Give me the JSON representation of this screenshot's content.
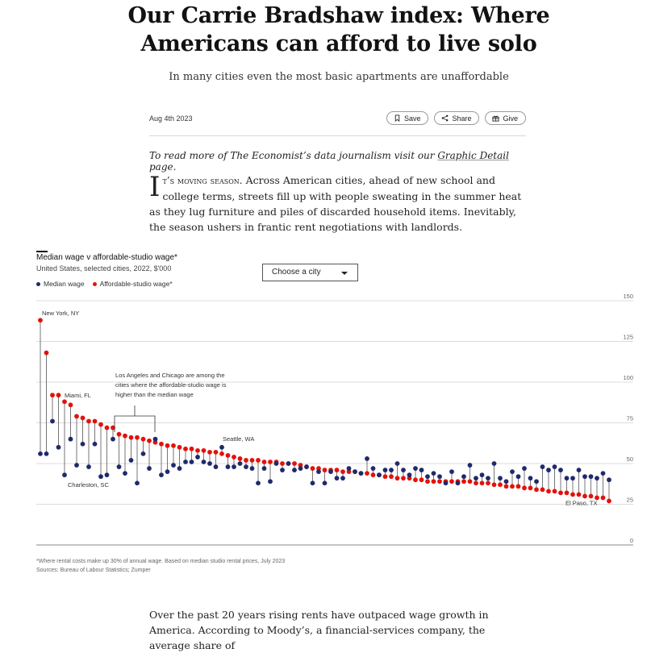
{
  "article": {
    "headline": "Our Carrie Bradshaw index: Where Americans can afford to live solo",
    "subhead": "In many cities even the most basic apartments are unaffordable",
    "date": "Aug 4th 2023",
    "buttons": {
      "save": "Save",
      "share": "Share",
      "give": "Give"
    },
    "readmore_prefix": "To read more of The Economist’s data journalism visit our ",
    "readmore_link": "Graphic Detail",
    "readmore_suffix": " page.",
    "para1_dropcap": "I",
    "para1_smallcaps": "t’s moving season.",
    "para1_rest": " Across American cities, ahead of new school and college terms, streets fill up with people sweating in the summer heat as they lug furniture and piles of discarded household items. Inevitably, the season ushers in frantic rent negotiations with landlords.",
    "para2": "Over the past 20 years rising rents have outpaced wage growth in America. According to Moody’s, a financial-services company, the average share of"
  },
  "chart": {
    "title": "Median wage v affordable-studio wage*",
    "subtitle": "United States, selected cities, 2022, $'000",
    "city_select": "Choose a city",
    "footnote_1": "*Where rental costs make up 30% of annual wage. Based on median studio rental prices, July 2023",
    "footnote_2": "Sources: Bureau of Labour Statistics; Zumper"
  },
  "chart_data": {
    "type": "scatter",
    "title": "Median wage v affordable-studio wage*",
    "subtitle": "United States, selected cities, 2022, $'000",
    "ylim": [
      0,
      150
    ],
    "yticks": [
      0,
      25,
      50,
      75,
      100,
      125,
      150
    ],
    "grid": true,
    "legend": "top-left",
    "series": [
      {
        "name": "Median wage",
        "color": "#1f2a6b",
        "values": [
          56,
          56,
          76,
          60,
          43,
          65,
          49,
          62,
          48,
          62,
          42,
          43,
          65,
          48,
          44,
          52,
          38,
          56,
          47,
          65,
          43,
          45,
          49,
          47,
          51,
          51,
          54,
          51,
          50,
          48,
          60,
          48,
          48,
          50,
          48,
          47,
          38,
          47,
          39,
          50,
          46,
          50,
          46,
          47,
          48,
          38,
          45,
          38,
          45,
          41,
          41,
          47,
          45,
          44,
          53,
          47,
          43,
          46,
          46,
          50,
          46,
          43,
          47,
          46,
          42,
          44,
          42,
          38,
          45,
          38,
          42,
          49,
          41,
          43,
          41,
          50,
          41,
          39,
          45,
          42,
          47,
          41,
          39,
          48,
          46,
          48,
          46,
          41,
          41,
          46,
          42,
          42,
          41,
          44,
          40
        ]
      },
      {
        "name": "Affordable-studio wage*",
        "color": "#e3120b",
        "values": [
          138,
          118,
          92,
          92,
          88,
          86,
          79,
          78,
          76,
          76,
          74,
          72,
          72,
          68,
          67,
          66,
          66,
          65,
          64,
          63,
          62,
          61,
          61,
          60,
          59,
          59,
          58,
          58,
          57,
          57,
          56,
          55,
          54,
          53,
          52,
          52,
          52,
          51,
          51,
          51,
          50,
          50,
          50,
          49,
          48,
          47,
          47,
          46,
          46,
          46,
          45,
          45,
          45,
          44,
          44,
          43,
          43,
          42,
          42,
          41,
          41,
          41,
          40,
          40,
          39,
          39,
          39,
          39,
          39,
          39,
          39,
          39,
          38,
          38,
          38,
          37,
          37,
          36,
          36,
          36,
          35,
          35,
          34,
          34,
          33,
          33,
          32,
          32,
          31,
          31,
          30,
          30,
          29,
          29,
          27
        ]
      }
    ],
    "annotations": {
      "new_york": "New York, NY",
      "miami": "Miami, FL",
      "charleston": "Charleston, SC",
      "seattle": "Seattle, WA",
      "el_paso": "El Paso, TX",
      "la_chicago": [
        "Los Angeles and Chicago are among the",
        "cities where the affordable-studio wage is",
        "higher than the median wage"
      ]
    },
    "legend_labels": {
      "median": "Median wage",
      "affordable": "Affordable-studio wage*"
    }
  }
}
